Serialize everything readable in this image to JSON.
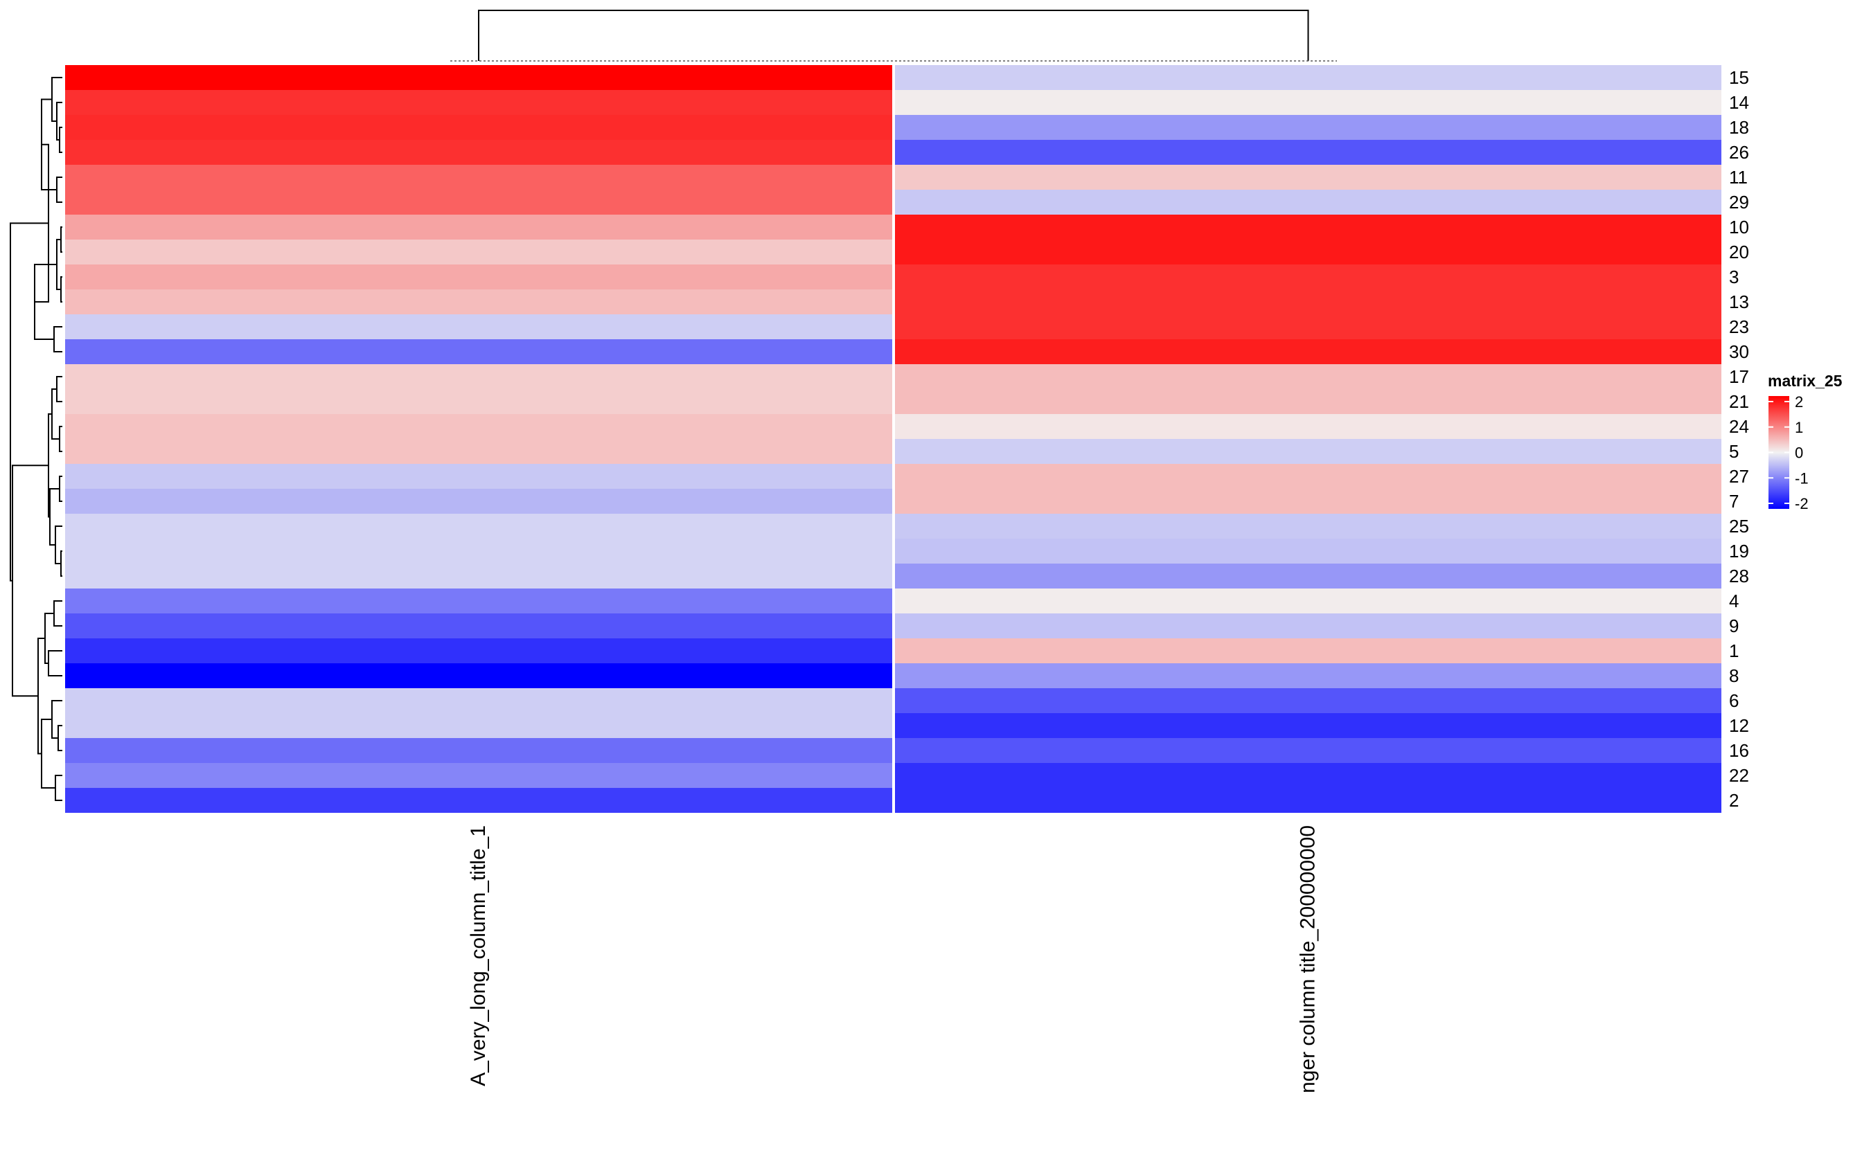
{
  "chart_data": {
    "type": "heatmap",
    "title": "",
    "xlabel": "",
    "ylabel": "",
    "columns": [
      "A_very_long_column_title_1",
      "nger column title_200000000"
    ],
    "rows": [
      "15",
      "14",
      "18",
      "26",
      "11",
      "29",
      "10",
      "20",
      "3",
      "13",
      "23",
      "30",
      "17",
      "21",
      "24",
      "5",
      "27",
      "7",
      "25",
      "19",
      "28",
      "4",
      "9",
      "1",
      "8",
      "6",
      "12",
      "16",
      "22",
      "2"
    ],
    "values": [
      [
        2.0,
        -0.3
      ],
      [
        1.6,
        0.05
      ],
      [
        1.65,
        -0.75
      ],
      [
        1.6,
        -1.3
      ],
      [
        1.2,
        0.35
      ],
      [
        1.2,
        -0.35
      ],
      [
        0.65,
        1.8
      ],
      [
        0.35,
        1.8
      ],
      [
        0.6,
        1.6
      ],
      [
        0.45,
        1.6
      ],
      [
        -0.3,
        1.6
      ],
      [
        -1.1,
        1.75
      ],
      [
        0.3,
        0.45
      ],
      [
        0.3,
        0.45
      ],
      [
        0.4,
        0.1
      ],
      [
        0.4,
        -0.3
      ],
      [
        -0.35,
        0.45
      ],
      [
        -0.5,
        0.45
      ],
      [
        -0.25,
        -0.35
      ],
      [
        -0.25,
        -0.4
      ],
      [
        -0.25,
        -0.75
      ],
      [
        -1.0,
        0.05
      ],
      [
        -1.3,
        -0.4
      ],
      [
        -1.6,
        0.45
      ],
      [
        -2.0,
        -0.75
      ],
      [
        -0.3,
        -1.3
      ],
      [
        -0.3,
        -1.6
      ],
      [
        -1.1,
        -1.3
      ],
      [
        -0.9,
        -1.6
      ],
      [
        -1.5,
        -1.6
      ]
    ],
    "legend": {
      "title": "matrix_25",
      "ticks": [
        "2",
        "1",
        "0",
        "-1",
        "-2"
      ],
      "range": [
        -2,
        2
      ],
      "position": "right"
    },
    "colors": {
      "low": "#0000FF",
      "mid": "#F2F2F2",
      "high": "#FF0000",
      "line": "#000000"
    },
    "row_dendrogram_merge_order": [
      [
        "0",
        "1"
      ]
    ]
  }
}
